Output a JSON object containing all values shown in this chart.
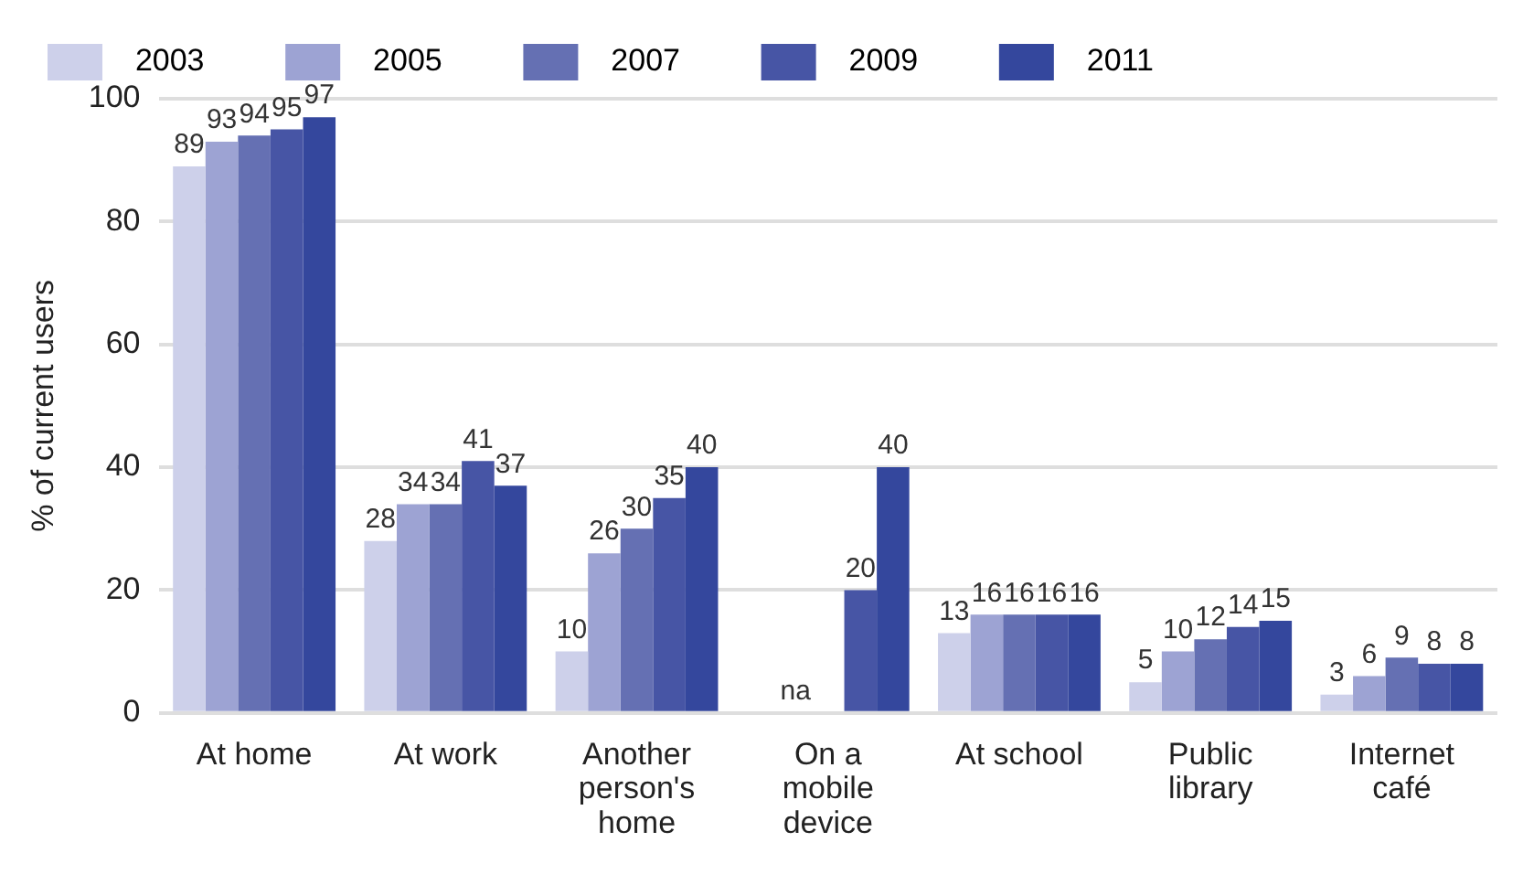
{
  "chart_data": {
    "type": "bar",
    "ylabel": "% of current users",
    "categories": [
      "At home",
      "At work",
      "Another person's home",
      "On a mobile device",
      "At school",
      "Public library",
      "Internet café"
    ],
    "series": [
      {
        "name": "2003",
        "color": "#cdd0ea",
        "values": [
          89,
          28,
          10,
          null,
          13,
          5,
          3
        ],
        "value_labels": [
          "89",
          "28",
          "10",
          null,
          "13",
          "5",
          "3"
        ]
      },
      {
        "name": "2005",
        "color": "#9da3d3",
        "values": [
          93,
          34,
          26,
          null,
          16,
          10,
          6
        ],
        "value_labels": [
          "93",
          "34",
          "26",
          "na",
          "16",
          "10",
          "6"
        ]
      },
      {
        "name": "2007",
        "color": "#6570b3",
        "values": [
          94,
          34,
          30,
          null,
          16,
          12,
          9
        ],
        "value_labels": [
          "94",
          "34",
          "30",
          null,
          "16",
          "12",
          "9"
        ]
      },
      {
        "name": "2009",
        "color": "#4755a5",
        "values": [
          95,
          41,
          35,
          20,
          16,
          14,
          8
        ],
        "value_labels": [
          "95",
          "41",
          "35",
          "20",
          "16",
          "14",
          "8"
        ]
      },
      {
        "name": "2011",
        "color": "#34479d",
        "values": [
          97,
          37,
          40,
          40,
          16,
          15,
          8
        ],
        "value_labels": [
          "97",
          "37",
          "40",
          "40",
          "16",
          "15",
          "8"
        ]
      }
    ],
    "ylim": [
      0,
      100
    ],
    "yticks": [
      0,
      20,
      40,
      60,
      80,
      100
    ],
    "grid": "y",
    "legend": "top left"
  }
}
